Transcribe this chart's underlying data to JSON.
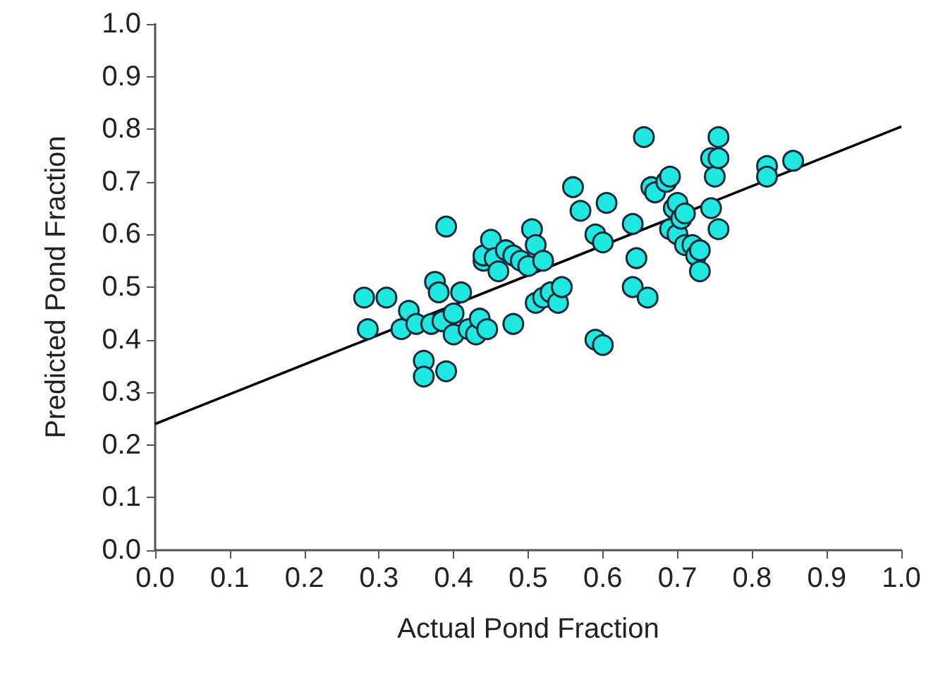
{
  "chart_data": {
    "type": "scatter",
    "xlabel": "Actual Pond Fraction",
    "ylabel": "Predicted Pond Fraction",
    "xlim": [
      0,
      1
    ],
    "ylim": [
      0,
      1
    ],
    "xticks": [
      {
        "value": 0,
        "label": "0.0"
      },
      0.1,
      0.2,
      0.3,
      0.4,
      0.5,
      0.6,
      0.7,
      0.8,
      0.9,
      {
        "value": 1,
        "label": "1.0"
      }
    ],
    "yticks": [
      {
        "value": 0,
        "label": "0.0"
      },
      0.1,
      0.2,
      0.3,
      0.4,
      0.5,
      0.6,
      0.7,
      0.8,
      0.9,
      {
        "value": 1,
        "label": "1.0"
      }
    ],
    "grid": false,
    "marker": "circle",
    "series": [
      {
        "color": "#1ee8e0",
        "x": [
          0.28,
          0.285,
          0.31,
          0.33,
          0.34,
          0.35,
          0.36,
          0.36,
          0.37,
          0.375,
          0.38,
          0.385,
          0.39,
          0.39,
          0.4,
          0.4,
          0.41,
          0.42,
          0.43,
          0.435,
          0.44,
          0.44,
          0.445,
          0.45,
          0.455,
          0.46,
          0.47,
          0.48,
          0.48,
          0.49,
          0.5,
          0.505,
          0.51,
          0.51,
          0.52,
          0.52,
          0.53,
          0.54,
          0.545,
          0.56,
          0.57,
          0.59,
          0.59,
          0.6,
          0.6,
          0.605,
          0.64,
          0.64,
          0.645,
          0.655,
          0.66,
          0.665,
          0.67,
          0.685,
          0.69,
          0.69,
          0.695,
          0.7,
          0.7,
          0.705,
          0.71,
          0.71,
          0.72,
          0.725,
          0.73,
          0.73,
          0.745,
          0.745,
          0.75,
          0.755,
          0.755,
          0.755,
          0.82,
          0.82,
          0.855
        ],
        "values": [
          0.48,
          0.42,
          0.48,
          0.42,
          0.455,
          0.43,
          0.36,
          0.33,
          0.43,
          0.51,
          0.49,
          0.435,
          0.615,
          0.34,
          0.41,
          0.45,
          0.49,
          0.42,
          0.41,
          0.44,
          0.55,
          0.56,
          0.42,
          0.59,
          0.555,
          0.53,
          0.57,
          0.43,
          0.56,
          0.55,
          0.54,
          0.61,
          0.58,
          0.47,
          0.48,
          0.55,
          0.49,
          0.47,
          0.5,
          0.69,
          0.645,
          0.6,
          0.4,
          0.585,
          0.39,
          0.66,
          0.62,
          0.5,
          0.555,
          0.785,
          0.48,
          0.69,
          0.68,
          0.7,
          0.71,
          0.61,
          0.65,
          0.66,
          0.6,
          0.63,
          0.58,
          0.64,
          0.58,
          0.56,
          0.57,
          0.53,
          0.745,
          0.65,
          0.71,
          0.785,
          0.745,
          0.61,
          0.73,
          0.71,
          0.74
        ]
      },
      {
        "type": "line",
        "color": "#000000",
        "marker": "none",
        "line_style": "solid",
        "x": [
          0,
          1
        ],
        "values": [
          0.24,
          0.805
        ]
      }
    ]
  }
}
